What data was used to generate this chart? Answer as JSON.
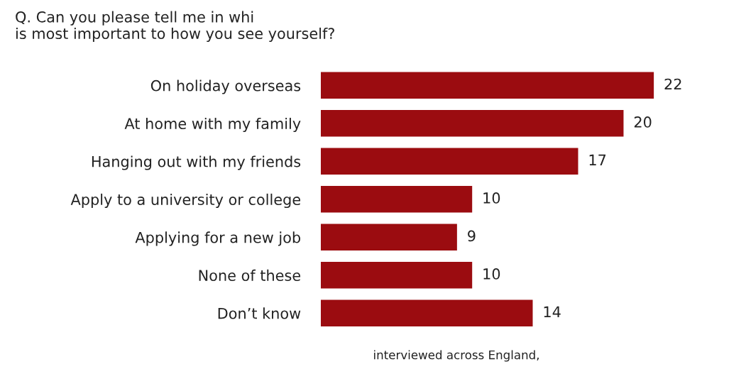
{
  "chart_data": {
    "type": "bar",
    "orientation": "horizontal",
    "title": "Q. Can you please tell me in whi\nis most important to how you see yourself?",
    "categories": [
      "On holiday overseas",
      "At home with my family",
      "Hanging out with my friends",
      "Apply to a university or college",
      "Applying for a new job",
      "None of these",
      "Don’t know"
    ],
    "values": [
      22,
      20,
      17,
      10,
      9,
      10,
      14
    ],
    "color": "#9b0c10",
    "data_labels": true,
    "annotations": [
      "interviewed across England,"
    ]
  }
}
